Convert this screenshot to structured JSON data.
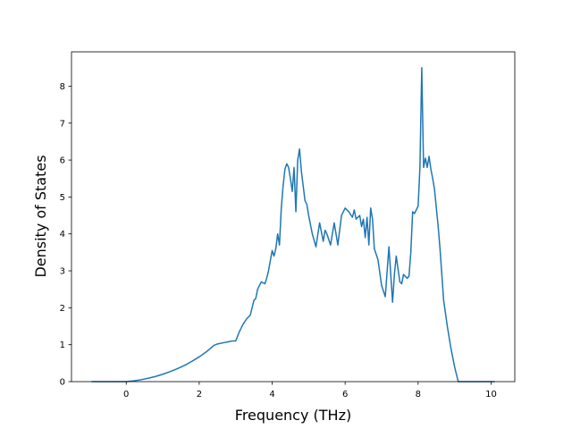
{
  "chart_data": {
    "type": "line",
    "title": "",
    "xlabel": "Frequency (THz)",
    "ylabel": "Density of States",
    "xlim": [
      -1.5,
      10.65
    ],
    "ylim": [
      0,
      8.93
    ],
    "xticks": [
      0,
      2,
      4,
      6,
      8,
      10
    ],
    "yticks": [
      0,
      1,
      2,
      3,
      4,
      5,
      6,
      7,
      8
    ],
    "grid": false,
    "legend": "none",
    "series": [
      {
        "color": "#1f77b4",
        "x": [
          -0.95,
          -0.7,
          -0.5,
          -0.3,
          -0.1,
          0.0,
          0.2,
          0.4,
          0.6,
          0.8,
          1.0,
          1.2,
          1.4,
          1.6,
          1.8,
          2.0,
          2.2,
          2.4,
          2.5,
          2.7,
          2.9,
          3.0,
          3.1,
          3.2,
          3.3,
          3.4,
          3.5,
          3.55,
          3.6,
          3.7,
          3.8,
          3.85,
          3.9,
          4.0,
          4.05,
          4.1,
          4.15,
          4.2,
          4.25,
          4.3,
          4.35,
          4.4,
          4.45,
          4.5,
          4.55,
          4.6,
          4.65,
          4.7,
          4.75,
          4.8,
          4.85,
          4.9,
          4.95,
          5.0,
          5.1,
          5.2,
          5.3,
          5.4,
          5.45,
          5.5,
          5.6,
          5.7,
          5.8,
          5.9,
          6.0,
          6.1,
          6.2,
          6.25,
          6.3,
          6.4,
          6.45,
          6.5,
          6.55,
          6.6,
          6.65,
          6.7,
          6.75,
          6.8,
          6.9,
          7.0,
          7.1,
          7.2,
          7.3,
          7.35,
          7.4,
          7.5,
          7.55,
          7.6,
          7.7,
          7.75,
          7.8,
          7.85,
          7.9,
          8.0,
          8.05,
          8.1,
          8.15,
          8.2,
          8.25,
          8.3,
          8.35,
          8.4,
          8.45,
          8.5,
          8.55,
          8.6,
          8.65,
          8.7,
          8.8,
          8.9,
          9.0,
          9.1,
          9.2,
          9.25,
          9.6,
          10.0,
          10.1
        ],
        "y": [
          0.0,
          0.0,
          0.0,
          0.0,
          0.0,
          0.0,
          0.02,
          0.05,
          0.09,
          0.14,
          0.2,
          0.27,
          0.35,
          0.44,
          0.55,
          0.67,
          0.81,
          0.98,
          1.02,
          1.06,
          1.1,
          1.1,
          1.35,
          1.55,
          1.7,
          1.8,
          2.2,
          2.25,
          2.5,
          2.7,
          2.65,
          2.8,
          3.0,
          3.55,
          3.4,
          3.6,
          4.0,
          3.7,
          4.7,
          5.3,
          5.75,
          5.9,
          5.8,
          5.5,
          5.15,
          5.8,
          4.6,
          6.0,
          6.3,
          5.7,
          5.3,
          4.9,
          4.8,
          4.5,
          4.0,
          3.65,
          4.3,
          3.8,
          4.1,
          4.0,
          3.7,
          4.3,
          3.7,
          4.5,
          4.7,
          4.6,
          4.45,
          4.65,
          4.4,
          4.5,
          4.2,
          4.4,
          3.9,
          4.45,
          3.7,
          4.7,
          4.4,
          3.6,
          3.3,
          2.6,
          2.3,
          3.65,
          2.15,
          2.9,
          3.4,
          2.7,
          2.65,
          2.9,
          2.8,
          2.85,
          3.5,
          4.6,
          4.55,
          4.75,
          5.8,
          8.5,
          5.8,
          6.05,
          5.8,
          6.1,
          5.75,
          5.5,
          5.2,
          4.7,
          4.2,
          3.6,
          2.9,
          2.2,
          1.5,
          0.9,
          0.4,
          0.0,
          0.0,
          0.0,
          0.0,
          0.0,
          0.0
        ]
      }
    ]
  }
}
